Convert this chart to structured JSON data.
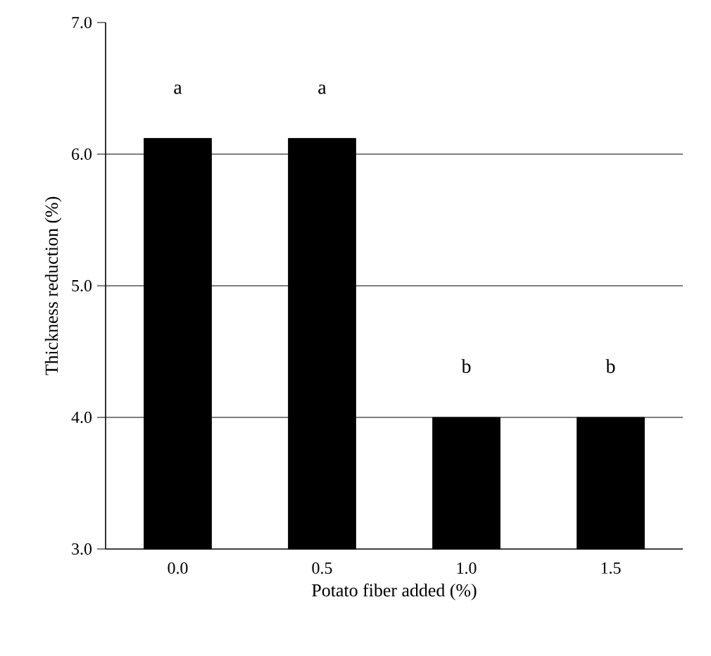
{
  "chart_data": {
    "type": "bar",
    "xlabel": "Potato fiber added (%)",
    "ylabel": "Thickness reduction (%)",
    "categories": [
      "0.0",
      "0.5",
      "1.0",
      "1.5"
    ],
    "values": [
      6.12,
      6.12,
      4.0,
      4.0
    ],
    "color": "#000000",
    "ylim": [
      3.0,
      7.0
    ],
    "yticks": [
      {
        "value": 3.0,
        "label": "3.0"
      },
      {
        "value": 4.0,
        "label": "4.0"
      },
      {
        "value": 5.0,
        "label": "5.0"
      },
      {
        "value": 6.0,
        "label": "6.0"
      },
      {
        "value": 7.0,
        "label": "7.0"
      }
    ],
    "grid": "y",
    "annotations": [
      "a",
      "a",
      "b",
      "b"
    ]
  }
}
